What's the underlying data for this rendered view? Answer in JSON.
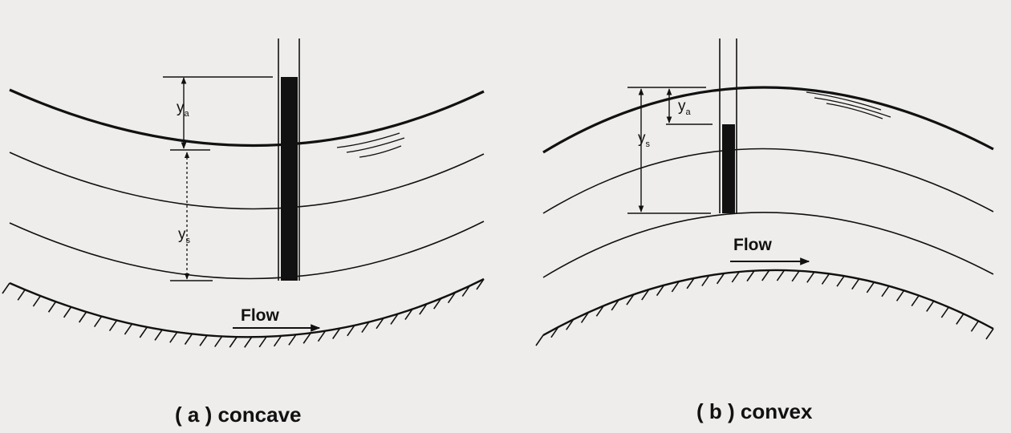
{
  "panels": [
    {
      "caption": "( a ) concave",
      "flow_label": "Flow",
      "depth_labels": {
        "a": {
          "base": "y",
          "sub": "a"
        },
        "s": {
          "base": "y",
          "sub": "s"
        }
      }
    },
    {
      "caption": "( b ) convex",
      "flow_label": "Flow",
      "depth_labels": {
        "a": {
          "base": "y",
          "sub": "a"
        },
        "s": {
          "base": "y",
          "sub": "s"
        }
      }
    }
  ],
  "colors": {
    "ink": "#111111",
    "paper": "#eeedeb"
  }
}
